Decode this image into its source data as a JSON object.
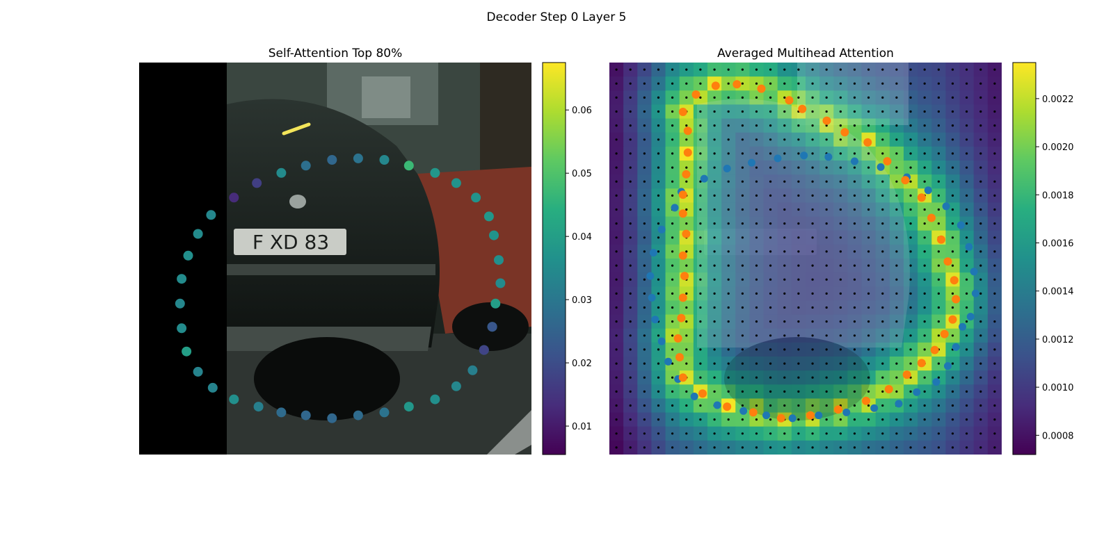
{
  "figure": {
    "suptitle": "Decoder Step 0 Layer 5"
  },
  "chart_data": [
    {
      "type": "scatter",
      "title": "Self-Attention Top 80%",
      "background": "photo of a dark car rear with license plate, left side masked black",
      "plate_text": "F XD 83",
      "colormap": "viridis",
      "colorbar": {
        "min": 0.0055,
        "max": 0.0675,
        "ticks": [
          "0.01",
          "0.02",
          "0.03",
          "0.04",
          "0.05",
          "0.06"
        ]
      },
      "points": [
        {
          "x": 1.03,
          "y": 0.29,
          "v": 0.04
        },
        {
          "x": 1.01,
          "y": 0.13,
          "v": 0.037
        },
        {
          "x": 0.96,
          "y": -0.03,
          "v": 0.034
        },
        {
          "x": 0.89,
          "y": -0.17,
          "v": 0.032
        },
        {
          "x": 0.79,
          "y": -0.28,
          "v": 0.034
        },
        {
          "x": 0.66,
          "y": -0.37,
          "v": 0.036
        },
        {
          "x": 0.5,
          "y": -0.42,
          "v": 0.038
        },
        {
          "x": 0.35,
          "y": -0.46,
          "v": 0.029
        },
        {
          "x": 0.19,
          "y": -0.48,
          "v": 0.027
        },
        {
          "x": 0.03,
          "y": -0.5,
          "v": 0.026
        },
        {
          "x": -0.13,
          "y": -0.48,
          "v": 0.026
        },
        {
          "x": -0.28,
          "y": -0.46,
          "v": 0.027
        },
        {
          "x": -0.42,
          "y": -0.42,
          "v": 0.032
        },
        {
          "x": -0.57,
          "y": -0.37,
          "v": 0.036
        },
        {
          "x": -0.7,
          "y": -0.29,
          "v": 0.033
        },
        {
          "x": -0.79,
          "y": -0.18,
          "v": 0.033
        },
        {
          "x": -0.86,
          "y": -0.04,
          "v": 0.04
        },
        {
          "x": -0.89,
          "y": 0.12,
          "v": 0.035
        },
        {
          "x": -0.9,
          "y": 0.29,
          "v": 0.034
        },
        {
          "x": -0.89,
          "y": 0.46,
          "v": 0.035
        },
        {
          "x": -0.85,
          "y": 0.62,
          "v": 0.036
        },
        {
          "x": -0.79,
          "y": 0.77,
          "v": 0.035
        },
        {
          "x": -0.71,
          "y": 0.9,
          "v": 0.034
        },
        {
          "x": -0.57,
          "y": 1.02,
          "v": 0.013
        },
        {
          "x": -0.43,
          "y": 1.12,
          "v": 0.017
        },
        {
          "x": -0.28,
          "y": 1.19,
          "v": 0.035
        },
        {
          "x": -0.13,
          "y": 1.24,
          "v": 0.028
        },
        {
          "x": 0.03,
          "y": 1.28,
          "v": 0.026
        },
        {
          "x": 0.19,
          "y": 1.29,
          "v": 0.029
        },
        {
          "x": 0.35,
          "y": 1.28,
          "v": 0.034
        },
        {
          "x": 0.5,
          "y": 1.24,
          "v": 0.047
        },
        {
          "x": 0.66,
          "y": 1.19,
          "v": 0.038
        },
        {
          "x": 0.79,
          "y": 1.12,
          "v": 0.037
        },
        {
          "x": 0.91,
          "y": 1.02,
          "v": 0.037
        },
        {
          "x": 0.99,
          "y": 0.89,
          "v": 0.038
        },
        {
          "x": 1.02,
          "y": 0.76,
          "v": 0.037
        },
        {
          "x": 1.05,
          "y": 0.59,
          "v": 0.036
        },
        {
          "x": 1.06,
          "y": 0.43,
          "v": 0.035
        },
        {
          "x": 1.01,
          "y": 0.13,
          "v": 0.022
        },
        {
          "x": 0.96,
          "y": -0.03,
          "v": 0.018
        }
      ]
    },
    {
      "type": "heatmap",
      "title": "Averaged Multihead Attention",
      "colormap": "viridis",
      "colorbar": {
        "min": 0.00072,
        "max": 0.00235,
        "ticks": [
          "0.0008",
          "0.0010",
          "0.0012",
          "0.0014",
          "0.0016",
          "0.0018",
          "0.0020",
          "0.0022"
        ]
      },
      "grid": {
        "rows": 28,
        "cols": 28
      },
      "series": [
        {
          "color": "#1f77b4",
          "points": [
            [
              1.01,
              0.13
            ],
            [
              0.97,
              -0.01
            ],
            [
              0.92,
              -0.14
            ],
            [
              0.85,
              -0.25
            ],
            [
              0.73,
              -0.32
            ],
            [
              0.62,
              -0.4
            ],
            [
              0.47,
              -0.43
            ],
            [
              0.3,
              -0.46
            ],
            [
              0.13,
              -0.48
            ],
            [
              -0.03,
              -0.5
            ],
            [
              -0.19,
              -0.48
            ],
            [
              -0.33,
              -0.45
            ],
            [
              -0.49,
              -0.41
            ],
            [
              -0.63,
              -0.35
            ],
            [
              -0.73,
              -0.23
            ],
            [
              -0.79,
              -0.11
            ],
            [
              -0.83,
              0.03
            ],
            [
              -0.87,
              0.18
            ],
            [
              -0.89,
              0.33
            ],
            [
              -0.9,
              0.48
            ],
            [
              -0.88,
              0.64
            ],
            [
              -0.83,
              0.8
            ],
            [
              -0.75,
              0.95
            ],
            [
              -0.71,
              1.06
            ],
            [
              -0.57,
              1.15
            ],
            [
              -0.43,
              1.22
            ],
            [
              -0.28,
              1.26
            ],
            [
              -0.12,
              1.29
            ],
            [
              0.04,
              1.31
            ],
            [
              0.19,
              1.3
            ],
            [
              0.35,
              1.27
            ],
            [
              0.51,
              1.23
            ],
            [
              0.67,
              1.16
            ],
            [
              0.8,
              1.07
            ],
            [
              0.91,
              0.96
            ],
            [
              1.0,
              0.83
            ],
            [
              1.05,
              0.68
            ],
            [
              1.08,
              0.51
            ],
            [
              1.09,
              0.36
            ],
            [
              1.06,
              0.2
            ]
          ]
        },
        {
          "color": "#ff7f0e",
          "points": [
            [
              0.9,
              0.08
            ],
            [
              0.84,
              -0.03
            ],
            [
              0.76,
              -0.12
            ],
            [
              0.67,
              -0.2
            ],
            [
              0.56,
              -0.3
            ],
            [
              0.42,
              -0.38
            ],
            [
              0.25,
              -0.44
            ],
            [
              0.08,
              -0.48
            ],
            [
              -0.1,
              -0.5
            ],
            [
              -0.27,
              -0.46
            ],
            [
              -0.43,
              -0.42
            ],
            [
              -0.58,
              -0.33
            ],
            [
              -0.7,
              -0.22
            ],
            [
              -0.72,
              -0.08
            ],
            [
              -0.73,
              0.05
            ],
            [
              -0.71,
              0.19
            ],
            [
              -0.7,
              0.33
            ],
            [
              -0.69,
              0.48
            ],
            [
              -0.7,
              0.62
            ],
            [
              -0.68,
              0.77
            ],
            [
              -0.7,
              0.91
            ],
            [
              -0.7,
              1.04
            ],
            [
              -0.68,
              1.18
            ],
            [
              -0.67,
              1.33
            ],
            [
              -0.67,
              1.48
            ],
            [
              -0.7,
              1.61
            ],
            [
              -0.62,
              1.73
            ],
            [
              -0.5,
              1.79
            ],
            [
              -0.37,
              1.8
            ],
            [
              -0.22,
              1.77
            ],
            [
              -0.05,
              1.69
            ],
            [
              0.03,
              1.63
            ],
            [
              0.18,
              1.55
            ],
            [
              0.29,
              1.47
            ],
            [
              0.43,
              1.4
            ],
            [
              0.55,
              1.27
            ],
            [
              0.66,
              1.14
            ],
            [
              0.76,
              1.02
            ],
            [
              0.82,
              0.88
            ],
            [
              0.88,
              0.73
            ],
            [
              0.92,
              0.58
            ],
            [
              0.96,
              0.45
            ],
            [
              0.97,
              0.32
            ],
            [
              0.95,
              0.18
            ]
          ]
        }
      ]
    }
  ]
}
